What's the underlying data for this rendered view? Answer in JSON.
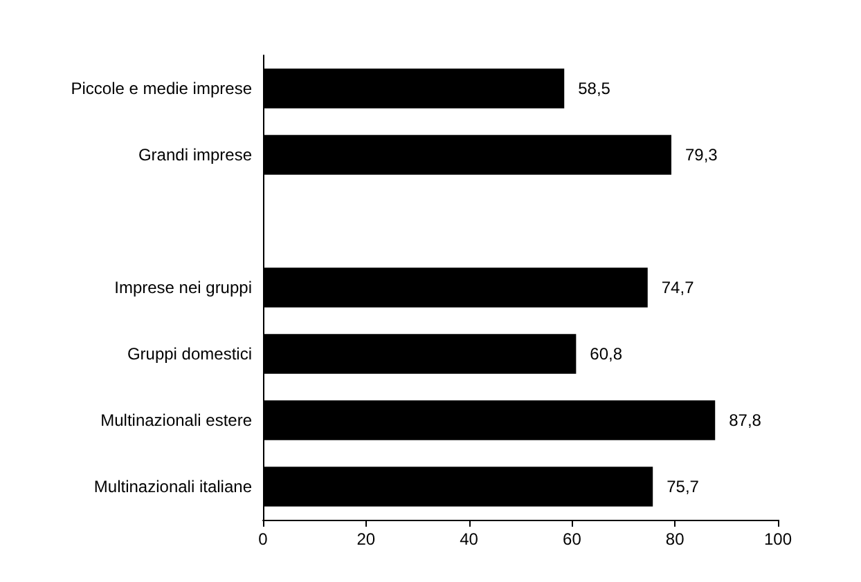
{
  "chart_data": {
    "type": "bar",
    "orientation": "horizontal",
    "categories": [
      "Piccole e medie imprese",
      "Grandi imprese",
      null,
      "Imprese nei gruppi",
      "Gruppi domestici",
      "Multinazionali estere",
      "Multinazionali italiane"
    ],
    "values": [
      58.5,
      79.3,
      null,
      74.7,
      60.8,
      87.8,
      75.7
    ],
    "value_labels": [
      "58,5",
      "79,3",
      null,
      "74,7",
      "60,8",
      "87,8",
      "75,7"
    ],
    "color": "#000000",
    "xlim": [
      0,
      100
    ],
    "xticks": [
      0,
      20,
      40,
      60,
      80,
      100
    ],
    "grid": false
  }
}
